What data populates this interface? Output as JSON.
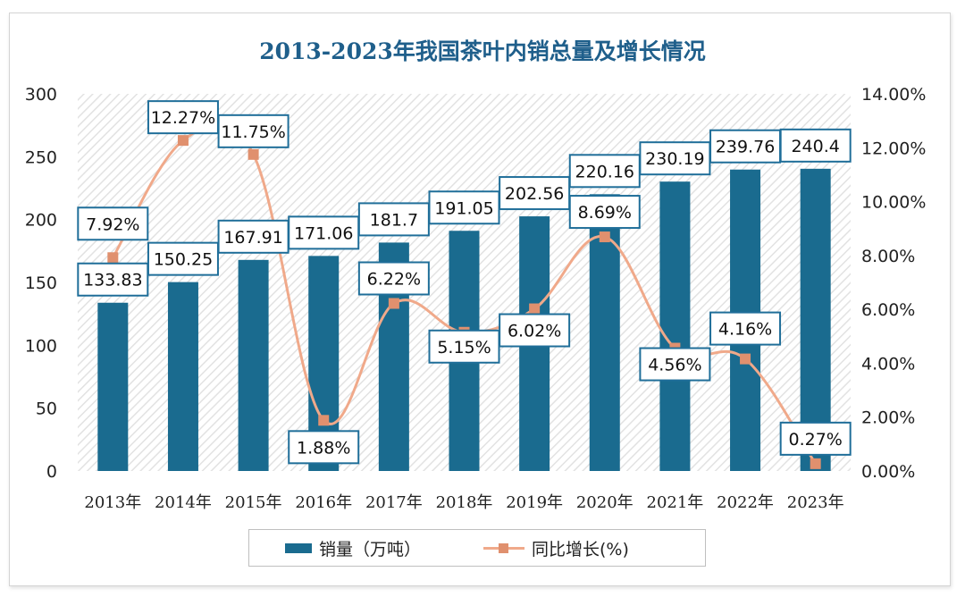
{
  "chart_data": {
    "type": "bar+line",
    "title": "2013-2023年我国茶叶内销总量及增长情况",
    "categories": [
      "2013年",
      "2014年",
      "2015年",
      "2016年",
      "2017年",
      "2018年",
      "2019年",
      "2020年",
      "2021年",
      "2022年",
      "2023年"
    ],
    "series": [
      {
        "name": "销量（万吨）",
        "type": "bar",
        "axis": "left",
        "color": "#1a6b8f",
        "values": [
          133.83,
          150.25,
          167.91,
          171.06,
          181.7,
          191.05,
          202.56,
          220.16,
          230.19,
          239.76,
          240.4
        ],
        "labels": [
          "133.83",
          "150.25",
          "167.91",
          "171.06",
          "181.7",
          "191.05",
          "202.56",
          "220.16",
          "230.19",
          "239.76",
          "240.4"
        ]
      },
      {
        "name": "同比增长(%)",
        "type": "line",
        "axis": "right",
        "color": "#f0a98a",
        "marker_color": "#e0906e",
        "values": [
          7.92,
          12.27,
          11.75,
          1.88,
          6.22,
          5.15,
          6.02,
          8.69,
          4.56,
          4.16,
          0.27
        ],
        "labels": [
          "7.92%",
          "12.27%",
          "11.75%",
          "1.88%",
          "6.22%",
          "5.15%",
          "6.02%",
          "8.69%",
          "4.56%",
          "4.16%",
          "0.27%"
        ]
      }
    ],
    "y_left": {
      "range": [
        0,
        300
      ],
      "ticks": [
        "0",
        "50",
        "100",
        "150",
        "200",
        "250",
        "300"
      ]
    },
    "y_right": {
      "range": [
        0,
        14
      ],
      "ticks": [
        "0.00%",
        "2.00%",
        "4.00%",
        "6.00%",
        "8.00%",
        "10.00%",
        "12.00%",
        "14.00%"
      ]
    },
    "legend_position": "bottom",
    "plot_background": "diagonal-hatch"
  }
}
